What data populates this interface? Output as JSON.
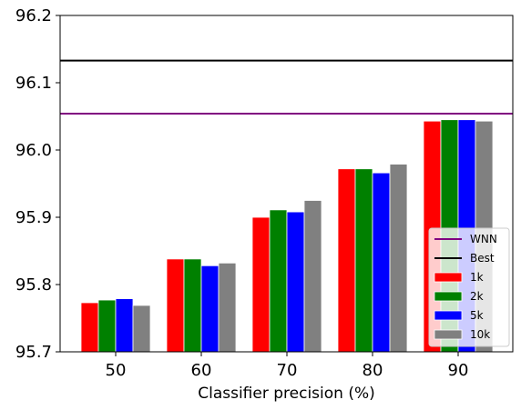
{
  "chart_data": {
    "type": "bar",
    "title": "",
    "xlabel": "Classifier precision (%)",
    "ylabel": "",
    "categories": [
      "50",
      "60",
      "70",
      "80",
      "90"
    ],
    "ylim": [
      95.7,
      96.2
    ],
    "yticks": [
      "95.7",
      "95.8",
      "95.9",
      "96.0",
      "96.1",
      "96.2"
    ],
    "grid": false,
    "legend_position": "lower-right",
    "series": [
      {
        "name": "1k",
        "color": "#ff0000",
        "values": [
          95.773,
          95.838,
          95.9,
          95.972,
          96.043
        ]
      },
      {
        "name": "2k",
        "color": "#008000",
        "values": [
          95.777,
          95.838,
          95.911,
          95.972,
          96.045
        ]
      },
      {
        "name": "5k",
        "color": "#0000ff",
        "values": [
          95.779,
          95.828,
          95.908,
          95.966,
          96.045
        ]
      },
      {
        "name": "10k",
        "color": "#808080",
        "values": [
          95.769,
          95.832,
          95.925,
          95.979,
          96.043
        ]
      }
    ],
    "reference_lines": [
      {
        "name": "WNN",
        "color": "#800080",
        "value": 96.054
      },
      {
        "name": "Best",
        "color": "#000000",
        "value": 96.133
      }
    ],
    "legend": [
      {
        "label": "WNN",
        "kind": "line",
        "color": "#800080"
      },
      {
        "label": "Best",
        "kind": "line",
        "color": "#000000"
      },
      {
        "label": "1k",
        "kind": "patch",
        "color": "#ff0000"
      },
      {
        "label": "2k",
        "kind": "patch",
        "color": "#008000"
      },
      {
        "label": "5k",
        "kind": "patch",
        "color": "#0000ff"
      },
      {
        "label": "10k",
        "kind": "patch",
        "color": "#808080"
      }
    ]
  }
}
